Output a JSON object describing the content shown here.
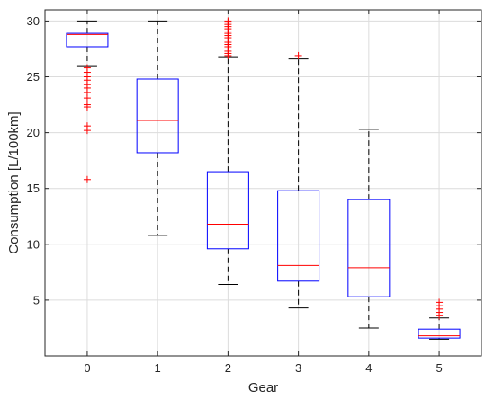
{
  "chart_data": {
    "type": "box",
    "title": "",
    "xlabel": "Gear",
    "ylabel": "Consumption [L/100km]",
    "ylim": [
      0,
      31
    ],
    "yticks": [
      5,
      10,
      15,
      20,
      25,
      30
    ],
    "grid": true,
    "categories": [
      "0",
      "1",
      "2",
      "3",
      "4",
      "5"
    ],
    "boxes": [
      {
        "category": "0",
        "whisker_low": 26.0,
        "q1": 27.7,
        "median": 28.8,
        "q3": 28.9,
        "whisker_high": 30.0,
        "outliers": [
          25.8,
          25.4,
          25.0,
          24.7,
          24.3,
          24.0,
          23.6,
          23.1,
          22.5,
          22.3,
          20.6,
          20.2,
          15.8
        ]
      },
      {
        "category": "1",
        "whisker_low": 10.8,
        "q1": 18.2,
        "median": 21.1,
        "q3": 24.8,
        "whisker_high": 30.0,
        "outliers": []
      },
      {
        "category": "2",
        "whisker_low": 6.4,
        "q1": 9.6,
        "median": 11.8,
        "q3": 16.5,
        "whisker_high": 26.8,
        "outliers": [
          26.9,
          27.1,
          27.3,
          27.5,
          27.7,
          27.9,
          28.1,
          28.3,
          28.5,
          28.7,
          28.9,
          29.1,
          29.3,
          29.5,
          29.7,
          29.9,
          30.0
        ]
      },
      {
        "category": "3",
        "whisker_low": 4.3,
        "q1": 6.7,
        "median": 8.1,
        "q3": 14.8,
        "whisker_high": 26.6,
        "outliers": [
          26.9
        ]
      },
      {
        "category": "4",
        "whisker_low": 2.5,
        "q1": 5.3,
        "median": 7.9,
        "q3": 14.0,
        "whisker_high": 20.3,
        "outliers": []
      },
      {
        "category": "5",
        "whisker_low": 1.5,
        "q1": 1.6,
        "median": 1.8,
        "q3": 2.4,
        "whisker_high": 3.4,
        "outliers": [
          3.6,
          3.9,
          4.2,
          4.5,
          4.8
        ]
      }
    ],
    "colors": {
      "box": "#0000ff",
      "median": "#ff0000",
      "whisker": "#000000",
      "outlier": "#ff0000",
      "grid": "#dcdcdc",
      "axis": "#262626"
    }
  }
}
